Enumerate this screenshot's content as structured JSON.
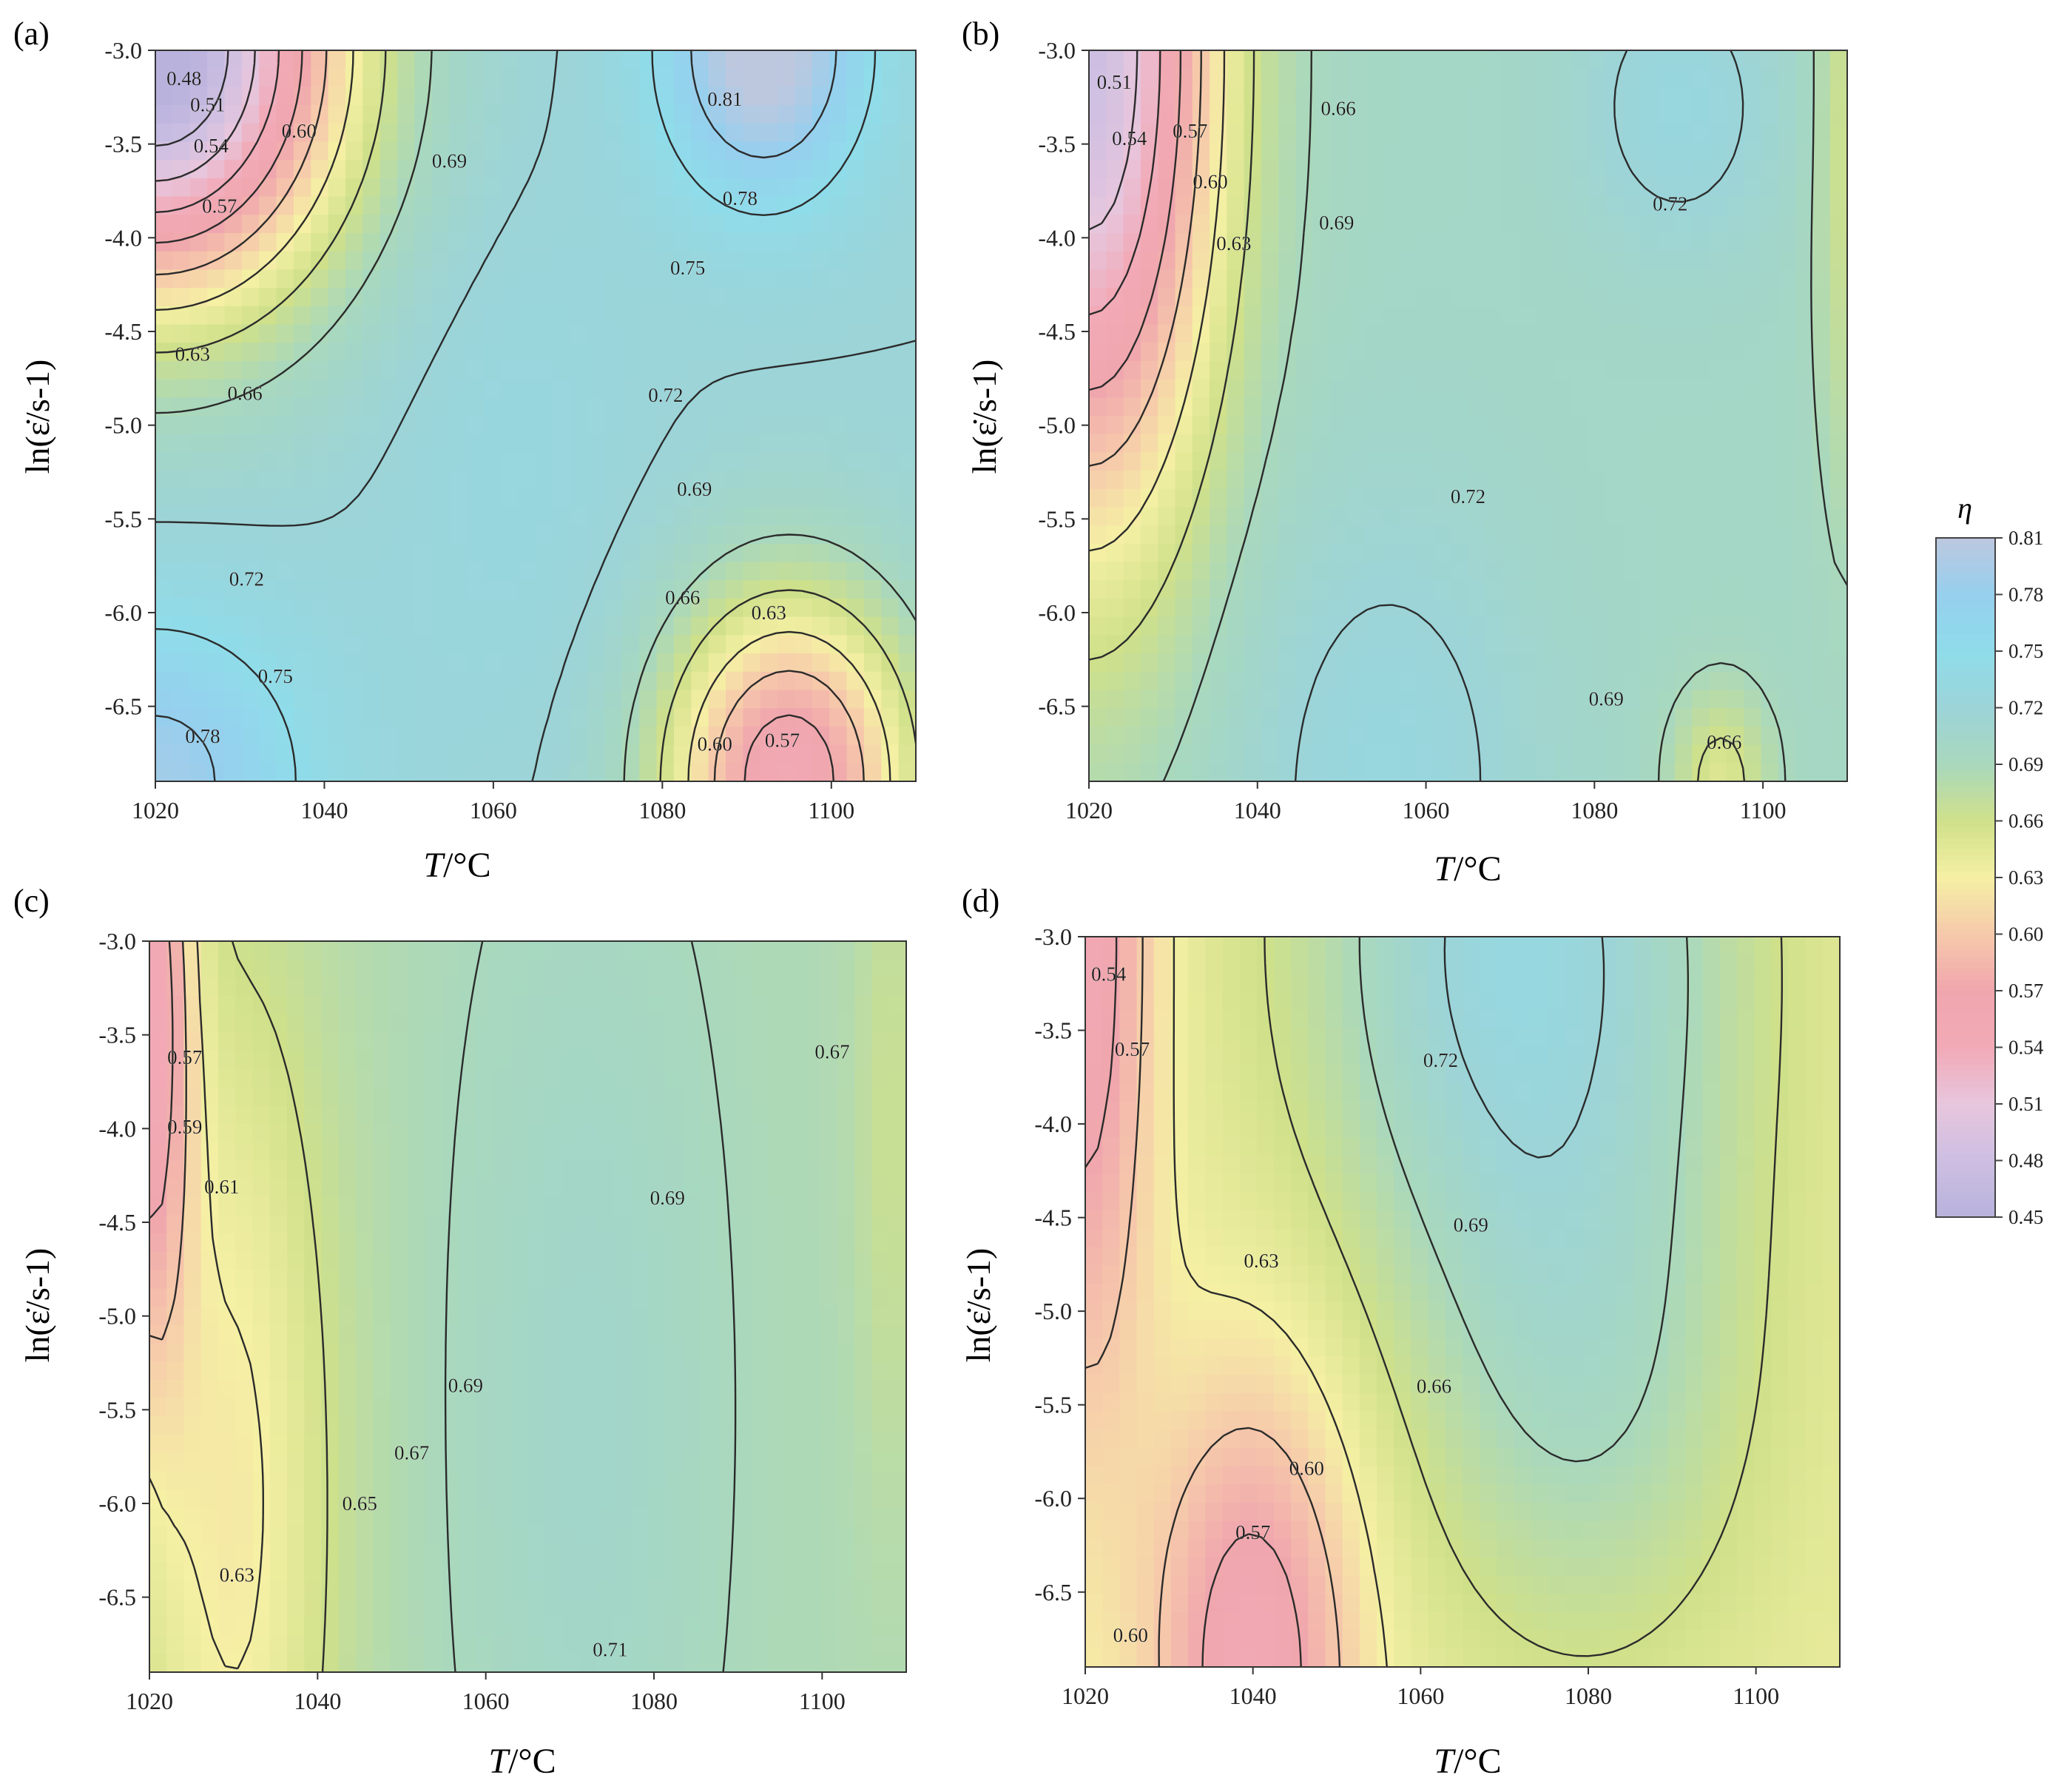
{
  "colors": {
    "stops": [
      {
        "v": 0.45,
        "c": "#b8b2dc"
      },
      {
        "v": 0.48,
        "c": "#cdbfe2"
      },
      {
        "v": 0.51,
        "c": "#e7c6dd"
      },
      {
        "v": 0.54,
        "c": "#f2aab7"
      },
      {
        "v": 0.57,
        "c": "#f0a6ad"
      },
      {
        "v": 0.6,
        "c": "#f6c9ab"
      },
      {
        "v": 0.63,
        "c": "#f5f0a4"
      },
      {
        "v": 0.66,
        "c": "#cfe08a"
      },
      {
        "v": 0.69,
        "c": "#a9d8bd"
      },
      {
        "v": 0.72,
        "c": "#9cd4d8"
      },
      {
        "v": 0.75,
        "c": "#8fdcea"
      },
      {
        "v": 0.78,
        "c": "#96cfee"
      },
      {
        "v": 0.81,
        "c": "#bdc8df"
      }
    ],
    "contour_line": "#2b2b2b"
  },
  "colorbar": {
    "title": "η",
    "ticks": [
      "0.81",
      "0.78",
      "0.75",
      "0.72",
      "0.69",
      "0.66",
      "0.63",
      "0.60",
      "0.57",
      "0.54",
      "0.51",
      "0.48",
      "0.45"
    ]
  },
  "chart_data": [
    {
      "type": "heatmap",
      "panel_label": "(a)",
      "xlabel_italic": "T",
      "xlabel_unit": "/°C",
      "ylabel": "ln(ε̇/s-1)",
      "xlim": [
        1020,
        1110
      ],
      "ylim": [
        -6.9,
        -3.0
      ],
      "xticks": [
        "1020",
        "1040",
        "1060",
        "1080",
        "1100"
      ],
      "yticks": [
        "-3.0",
        "-3.5",
        "-4.0",
        "-4.5",
        "-5.0",
        "-5.5",
        "-6.0",
        "-6.5"
      ],
      "grid": false,
      "field": {
        "base": 0.72,
        "bumps": [
          {
            "x": 1020,
            "y": -3.0,
            "a": -0.28,
            "sx": 22,
            "sy": 1.3
          },
          {
            "x": 1092,
            "y": -3.0,
            "a": 0.1,
            "sx": 12,
            "sy": 0.8
          },
          {
            "x": 1095,
            "y": -6.9,
            "a": -0.17,
            "sx": 15,
            "sy": 1.0
          },
          {
            "x": 1020,
            "y": -6.9,
            "a": 0.07,
            "sx": 18,
            "sy": 0.9
          },
          {
            "x": 1062,
            "y": -5.2,
            "a": 0.01,
            "sx": 15,
            "sy": 1.5
          }
        ]
      },
      "contour_labels": [
        {
          "text": "0.48",
          "x": 1023.4,
          "y": -3.15
        },
        {
          "text": "0.51",
          "x": 1026.2,
          "y": -3.29
        },
        {
          "text": "0.54",
          "x": 1026.6,
          "y": -3.51
        },
        {
          "text": "0.60",
          "x": 1037.0,
          "y": -3.43
        },
        {
          "text": "0.57",
          "x": 1027.6,
          "y": -3.83
        },
        {
          "text": "0.69",
          "x": 1054.8,
          "y": -3.59
        },
        {
          "text": "0.81",
          "x": 1087.4,
          "y": -3.26
        },
        {
          "text": "0.78",
          "x": 1089.2,
          "y": -3.79
        },
        {
          "text": "0.75",
          "x": 1083.0,
          "y": -4.16
        },
        {
          "text": "0.63",
          "x": 1024.4,
          "y": -4.62
        },
        {
          "text": "0.66",
          "x": 1030.6,
          "y": -4.83
        },
        {
          "text": "0.72",
          "x": 1080.4,
          "y": -4.84
        },
        {
          "text": "0.69",
          "x": 1083.8,
          "y": -5.34
        },
        {
          "text": "0.72",
          "x": 1030.8,
          "y": -5.82
        },
        {
          "text": "0.66",
          "x": 1082.4,
          "y": -5.92
        },
        {
          "text": "0.63",
          "x": 1092.6,
          "y": -6.0
        },
        {
          "text": "0.75",
          "x": 1034.2,
          "y": -6.34
        },
        {
          "text": "0.78",
          "x": 1025.6,
          "y": -6.66
        },
        {
          "text": "0.60",
          "x": 1086.2,
          "y": -6.7
        },
        {
          "text": "0.57",
          "x": 1094.2,
          "y": -6.68
        }
      ]
    },
    {
      "type": "heatmap",
      "panel_label": "(b)",
      "xlabel_italic": "T",
      "xlabel_unit": "/°C",
      "ylabel": "ln(ε̇/s-1)",
      "xlim": [
        1020,
        1110
      ],
      "ylim": [
        -6.9,
        -3.0
      ],
      "xticks": [
        "1020",
        "1040",
        "1060",
        "1080",
        "1100"
      ],
      "yticks": [
        "-3.0",
        "-3.5",
        "-4.0",
        "-4.5",
        "-5.0",
        "-5.5",
        "-6.0",
        "-6.5"
      ],
      "grid": false,
      "field": {
        "base": 0.7,
        "bumps": [
          {
            "x": 1020,
            "y": -3.0,
            "a": -0.22,
            "sx": 15,
            "sy": 2.5
          },
          {
            "x": 1090,
            "y": -3.3,
            "a": 0.03,
            "sx": 12,
            "sy": 0.8
          },
          {
            "x": 1055,
            "y": -6.9,
            "a": 0.03,
            "sx": 18,
            "sy": 1.5
          },
          {
            "x": 1095,
            "y": -6.9,
            "a": -0.05,
            "sx": 6,
            "sy": 0.5
          },
          {
            "x": 1110,
            "y": -3.5,
            "a": -0.04,
            "sx": 4,
            "sy": 2.0
          }
        ]
      },
      "contour_labels": [
        {
          "text": "0.51",
          "x": 1023.0,
          "y": -3.17
        },
        {
          "text": "0.66",
          "x": 1049.6,
          "y": -3.31
        },
        {
          "text": "0.54",
          "x": 1024.8,
          "y": -3.47
        },
        {
          "text": "0.57",
          "x": 1032.0,
          "y": -3.43
        },
        {
          "text": "0.60",
          "x": 1034.4,
          "y": -3.7
        },
        {
          "text": "0.72",
          "x": 1089.0,
          "y": -3.82
        },
        {
          "text": "0.69",
          "x": 1049.4,
          "y": -3.92
        },
        {
          "text": "0.63",
          "x": 1037.2,
          "y": -4.03
        },
        {
          "text": "0.72",
          "x": 1065.0,
          "y": -5.38
        },
        {
          "text": "0.69",
          "x": 1081.4,
          "y": -6.46
        },
        {
          "text": "0.66",
          "x": 1095.4,
          "y": -6.69
        }
      ]
    },
    {
      "type": "heatmap",
      "panel_label": "(c)",
      "xlabel_italic": "T",
      "xlabel_unit": "/°C",
      "ylabel": "ln(ε̇/s-1)",
      "xlim": [
        1020,
        1110
      ],
      "ylim": [
        -6.9,
        -3.0
      ],
      "xticks": [
        "1020",
        "1040",
        "1060",
        "1080",
        "1100"
      ],
      "yticks": [
        "-3.0",
        "-3.5",
        "-4.0",
        "-4.5",
        "-5.0",
        "-5.5",
        "-6.0",
        "-6.5"
      ],
      "grid": false,
      "field": {
        "base": 0.685,
        "bumps": [
          {
            "x": 1020,
            "y": -3.3,
            "a": -0.13,
            "sx": 5,
            "sy": 2.0
          },
          {
            "x": 1030,
            "y": -6.0,
            "a": -0.06,
            "sx": 12,
            "sy": 3.0
          },
          {
            "x": 1072,
            "y": -5.5,
            "a": 0.02,
            "sx": 15,
            "sy": 3.0
          },
          {
            "x": 1108,
            "y": -4.0,
            "a": -0.02,
            "sx": 4,
            "sy": 2.0
          }
        ]
      },
      "contour_labels": [
        {
          "text": "0.57",
          "x": 1024.2,
          "y": -3.62
        },
        {
          "text": "0.67",
          "x": 1101.2,
          "y": -3.59
        },
        {
          "text": "0.59",
          "x": 1024.2,
          "y": -3.99
        },
        {
          "text": "0.61",
          "x": 1028.6,
          "y": -4.31
        },
        {
          "text": "0.69",
          "x": 1081.6,
          "y": -4.37
        },
        {
          "text": "0.69",
          "x": 1057.6,
          "y": -5.37
        },
        {
          "text": "0.67",
          "x": 1051.2,
          "y": -5.73
        },
        {
          "text": "0.65",
          "x": 1045.0,
          "y": -6.0
        },
        {
          "text": "0.63",
          "x": 1030.4,
          "y": -6.38
        },
        {
          "text": "0.71",
          "x": 1074.8,
          "y": -6.78
        }
      ]
    },
    {
      "type": "heatmap",
      "panel_label": "(d)",
      "xlabel_italic": "T",
      "xlabel_unit": "/°C",
      "ylabel": "ln(ε̇/s-1)",
      "xlim": [
        1020,
        1110
      ],
      "ylim": [
        -6.9,
        -3.0
      ],
      "xticks": [
        "1020",
        "1040",
        "1060",
        "1080",
        "1100"
      ],
      "yticks": [
        "-3.0",
        "-3.5",
        "-4.0",
        "-4.5",
        "-5.0",
        "-5.5",
        "-6.0",
        "-6.5"
      ],
      "grid": false,
      "field": {
        "base": 0.64,
        "bumps": [
          {
            "x": 1020,
            "y": -3.0,
            "a": -0.09,
            "sx": 8,
            "sy": 2.5
          },
          {
            "x": 1040,
            "y": -6.9,
            "a": -0.09,
            "sx": 12,
            "sy": 1.5
          },
          {
            "x": 1072,
            "y": -3.0,
            "a": 0.09,
            "sx": 25,
            "sy": 2.0
          },
          {
            "x": 1080,
            "y": -5.5,
            "a": 0.04,
            "sx": 20,
            "sy": 1.5
          }
        ]
      },
      "contour_labels": [
        {
          "text": "0.54",
          "x": 1022.8,
          "y": -3.2
        },
        {
          "text": "0.57",
          "x": 1025.6,
          "y": -3.6
        },
        {
          "text": "0.72",
          "x": 1062.4,
          "y": -3.66
        },
        {
          "text": "0.63",
          "x": 1041.0,
          "y": -4.73
        },
        {
          "text": "0.69",
          "x": 1066.0,
          "y": -4.54
        },
        {
          "text": "0.66",
          "x": 1061.6,
          "y": -5.4
        },
        {
          "text": "0.60",
          "x": 1046.4,
          "y": -5.84
        },
        {
          "text": "0.57",
          "x": 1040.0,
          "y": -6.18
        },
        {
          "text": "0.60",
          "x": 1025.4,
          "y": -6.73
        }
      ]
    }
  ]
}
